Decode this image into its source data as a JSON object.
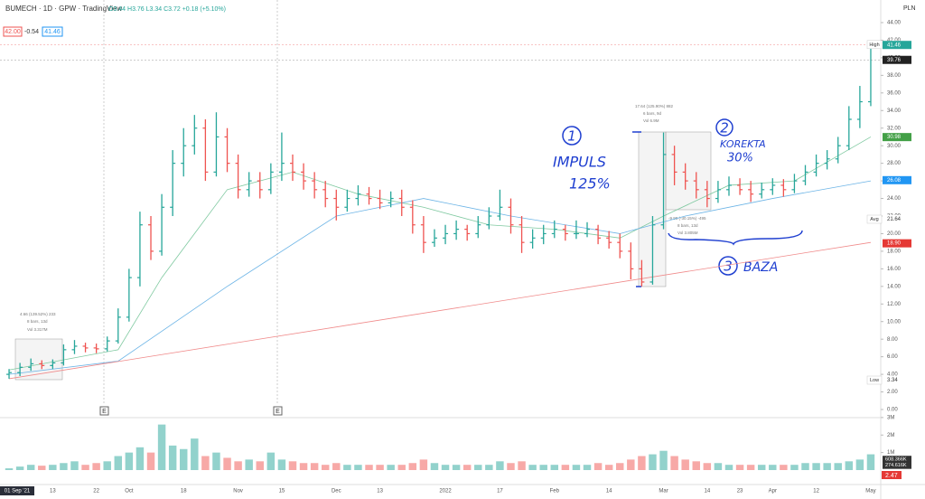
{
  "header": {
    "symbol": "BUMECH · 1D · GPW · TradingView",
    "ohlc": "O3.44 H3.76 L3.34 C3.72 +0.18 (+5.10%)",
    "bid": "42.00",
    "spread": "-0.54",
    "ask": "41.46",
    "currency": "PLN"
  },
  "chart_data": {
    "type": "ohlc",
    "open": [
      4.0,
      4.2,
      4.8,
      5.2,
      5.0,
      5.3,
      6.8,
      7.2,
      7.0,
      6.9,
      7.8,
      10.5,
      15,
      21,
      18,
      23,
      28,
      30,
      32,
      27,
      31,
      28,
      25,
      26,
      25,
      27,
      28,
      27,
      26,
      25,
      24,
      23,
      24,
      24.5,
      24,
      23.5,
      24,
      23,
      21,
      19,
      19.5,
      20,
      20.5,
      20,
      21,
      22,
      23,
      21,
      19,
      19.5,
      20,
      20.5,
      20,
      20,
      20.5,
      19.5,
      19,
      18,
      16,
      14.5,
      21,
      29,
      27,
      26,
      25,
      24,
      25,
      25.5,
      25,
      24.5,
      25,
      25.5,
      25,
      26,
      27,
      28,
      28.5,
      30,
      33,
      35
    ],
    "high": [
      4.6,
      5.3,
      5.8,
      5.6,
      5.7,
      7.4,
      7.9,
      7.6,
      7.5,
      8.3,
      11.5,
      16,
      22.5,
      22,
      24.5,
      29.5,
      32,
      33.5,
      33,
      33.8,
      32,
      29,
      27,
      27,
      28,
      31.5,
      29,
      28,
      27,
      26,
      25,
      25,
      25.5,
      25.3,
      25,
      24.8,
      25,
      23.8,
      22,
      20.5,
      21,
      21.5,
      21,
      22,
      23,
      25,
      24,
      22,
      20.5,
      21,
      21.5,
      21,
      21.5,
      21.3,
      21,
      20.3,
      20,
      19,
      17,
      22,
      31.5,
      30,
      28,
      27,
      26,
      26,
      26.5,
      26.3,
      26,
      25.8,
      26.3,
      26.2,
      26.8,
      27.8,
      29,
      29.5,
      31,
      34.5,
      36.8,
      41.5
    ],
    "low": [
      3.5,
      3.8,
      4.4,
      4.6,
      4.6,
      5.0,
      6.3,
      6.5,
      6.4,
      6.6,
      7.5,
      10,
      14,
      17,
      17.5,
      22,
      26.5,
      29,
      26,
      26.5,
      27,
      24,
      24.2,
      24,
      24.5,
      26,
      26,
      25,
      24,
      23,
      21.5,
      22.5,
      23.2,
      23.3,
      22.8,
      23,
      22,
      20,
      17.8,
      18.5,
      18.8,
      19.3,
      19.2,
      19.5,
      20.5,
      21.5,
      20,
      17.8,
      18.3,
      18.8,
      19.5,
      19.2,
      19.4,
      19.6,
      18.8,
      18.3,
      17.2,
      14.8,
      14,
      14.2,
      20.5,
      25.5,
      25,
      24,
      23,
      23.5,
      24.3,
      24.4,
      23.6,
      24,
      24.4,
      24.2,
      24.6,
      25.5,
      26.5,
      27.3,
      28,
      29.5,
      32,
      34.5
    ],
    "close": [
      4.2,
      4.8,
      5.2,
      5.0,
      5.3,
      6.8,
      7.2,
      7.0,
      6.9,
      7.8,
      10.5,
      15,
      21,
      18,
      23,
      28,
      30,
      32,
      27,
      31,
      28,
      25,
      26,
      25,
      27,
      28,
      27,
      26,
      25,
      24,
      23,
      24,
      24.5,
      24,
      23.5,
      24,
      23,
      21,
      19,
      19.5,
      20,
      20.5,
      20,
      21,
      22,
      23,
      21,
      19,
      19.5,
      20,
      20.5,
      20,
      20,
      20.5,
      19.5,
      19,
      18,
      16,
      14.5,
      21,
      29,
      27,
      26,
      25,
      24,
      25,
      25.5,
      25,
      24.5,
      25,
      25.5,
      25,
      26,
      27,
      28,
      28.5,
      30,
      33,
      35,
      41.46
    ],
    "volume": [
      0.1,
      0.2,
      0.3,
      0.25,
      0.3,
      0.4,
      0.5,
      0.3,
      0.4,
      0.5,
      0.8,
      1.0,
      1.3,
      1.0,
      2.6,
      1.4,
      1.2,
      1.8,
      0.8,
      1.0,
      0.7,
      0.5,
      0.6,
      0.5,
      1.0,
      0.6,
      0.5,
      0.4,
      0.4,
      0.3,
      0.4,
      0.3,
      0.3,
      0.3,
      0.3,
      0.3,
      0.3,
      0.4,
      0.6,
      0.4,
      0.3,
      0.3,
      0.3,
      0.3,
      0.3,
      0.5,
      0.4,
      0.5,
      0.3,
      0.3,
      0.3,
      0.3,
      0.3,
      0.3,
      0.4,
      0.3,
      0.4,
      0.6,
      0.8,
      0.9,
      1.1,
      0.8,
      0.6,
      0.5,
      0.4,
      0.4,
      0.3,
      0.3,
      0.3,
      0.3,
      0.3,
      0.3,
      0.3,
      0.4,
      0.4,
      0.4,
      0.4,
      0.5,
      0.6,
      0.9
    ],
    "up_color": "#26a69a",
    "down_color": "#ef5350",
    "ylim": [
      0,
      44
    ],
    "yticks": [
      {
        "value": 0,
        "label": "0.00"
      },
      {
        "value": 2,
        "label": "2.00"
      },
      {
        "value": 4,
        "label": "4.00"
      },
      {
        "value": 6,
        "label": "6.00"
      },
      {
        "value": 8,
        "label": "8.00"
      },
      {
        "value": 10,
        "label": "10.00"
      },
      {
        "value": 12,
        "label": "12.00"
      },
      {
        "value": 14,
        "label": "14.00"
      },
      {
        "value": 16,
        "label": "16.00"
      },
      {
        "value": 18,
        "label": "18.00"
      },
      {
        "value": 20,
        "label": "20.00"
      },
      {
        "value": 22,
        "label": "22.00"
      },
      {
        "value": 24,
        "label": "24.00"
      },
      {
        "value": 26,
        "label": "26.00"
      },
      {
        "value": 28,
        "label": "28.00"
      },
      {
        "value": 30,
        "label": "30.00"
      },
      {
        "value": 32,
        "label": "32.00"
      },
      {
        "value": 34,
        "label": "34.00"
      },
      {
        "value": 36,
        "label": "36.00"
      },
      {
        "value": 38,
        "label": "38.00"
      },
      {
        "value": 40,
        "label": "40.00"
      },
      {
        "value": 42,
        "label": "42.00"
      },
      {
        "value": 44,
        "label": "44.00"
      }
    ],
    "vol_ylim": [
      0,
      3.2
    ],
    "vol_ticks": [
      {
        "value": 1,
        "label": "1M"
      },
      {
        "value": 2,
        "label": "2M"
      },
      {
        "value": 3,
        "label": "3M"
      }
    ],
    "vol_tags": [
      {
        "value": 0.608366,
        "label": "608.366K",
        "color": "#333333"
      },
      {
        "value": 0.274616,
        "label": "274.616K",
        "color": "#333333"
      }
    ],
    "indicator_tag": "2.47",
    "date_labels": [
      {
        "bar": 0,
        "label": "01 Sep '21"
      },
      {
        "bar": 4,
        "label": "13"
      },
      {
        "bar": 8,
        "label": "22"
      },
      {
        "bar": 11,
        "label": "Oct"
      },
      {
        "bar": 16,
        "label": "18"
      },
      {
        "bar": 21,
        "label": "Nov"
      },
      {
        "bar": 25,
        "label": "15"
      },
      {
        "bar": 30,
        "label": "Dec"
      },
      {
        "bar": 34,
        "label": "13"
      },
      {
        "bar": 40,
        "label": "2022"
      },
      {
        "bar": 45,
        "label": "17"
      },
      {
        "bar": 50,
        "label": "Feb"
      },
      {
        "bar": 55,
        "label": "14"
      },
      {
        "bar": 60,
        "label": "Mar"
      },
      {
        "bar": 64,
        "label": "14"
      },
      {
        "bar": 67,
        "label": "23"
      },
      {
        "bar": 70,
        "label": "Apr"
      },
      {
        "bar": 74,
        "label": "12"
      },
      {
        "bar": 79,
        "label": "May"
      }
    ],
    "ma_lines": [
      {
        "color": "#7fc9a0",
        "bars": [
          0,
          10,
          14,
          20,
          26,
          32,
          38,
          44,
          50,
          56,
          60,
          66,
          72,
          79
        ],
        "values": [
          4.5,
          6.8,
          15,
          25,
          27,
          24.5,
          23,
          21,
          20.5,
          19.5,
          22,
          25.5,
          26,
          31
        ]
      },
      {
        "color": "#6cb4e6",
        "bars": [
          0,
          10,
          20,
          30,
          38,
          46,
          56,
          62,
          70,
          79
        ],
        "values": [
          4,
          5.5,
          14,
          22,
          24,
          22,
          20,
          22,
          24,
          26
        ]
      },
      {
        "color": "#f08a8a",
        "bars": [
          0,
          79
        ],
        "values": [
          3.5,
          19
        ]
      }
    ],
    "price_tags": [
      {
        "tag": "High",
        "value": 41.5,
        "label": "41.50",
        "color": "#ffffff",
        "text_color": "#333333"
      },
      {
        "value": 41.46,
        "label": "41.46",
        "color": "#26a69a",
        "text_color": "#ffffff"
      },
      {
        "value": 39.76,
        "label": "39.76",
        "color": "#222222",
        "text_color": "#ffffff"
      },
      {
        "value": 30.98,
        "label": "30.98",
        "color": "#43a047",
        "text_color": "#ffffff"
      },
      {
        "value": 26.08,
        "label": "26.08",
        "color": "#2196f3",
        "text_color": "#ffffff"
      },
      {
        "tag": "Avg",
        "value": 21.64,
        "label": "21.64",
        "color": "#ffffff",
        "text_color": "#333333"
      },
      {
        "value": 18.9,
        "label": "18.90",
        "color": "#e53935",
        "text_color": "#ffffff"
      },
      {
        "tag": "Low",
        "value": 3.34,
        "label": "3.34",
        "color": "#ffffff",
        "text_color": "#333333"
      }
    ],
    "earnings": [
      "E",
      "E"
    ],
    "measures": [
      [
        "4.66 (139.52%) 233",
        "8 bars, 13d",
        "Vol 3.317M"
      ],
      [
        "17.64 (125.90%) 882",
        "6 bars, 9d",
        "Vol 6.9M"
      ],
      [
        "-9.90 (-30.15%) -495",
        "8 bars, 13d",
        "Vol 3.805M"
      ]
    ],
    "annotations": {
      "n1": "1",
      "impuls": "IMPULS",
      "pct1": "125%",
      "n2": "2",
      "korekta": "KOREKTA",
      "pct2": "30%",
      "n3": "3",
      "baza": "BAZA"
    }
  }
}
